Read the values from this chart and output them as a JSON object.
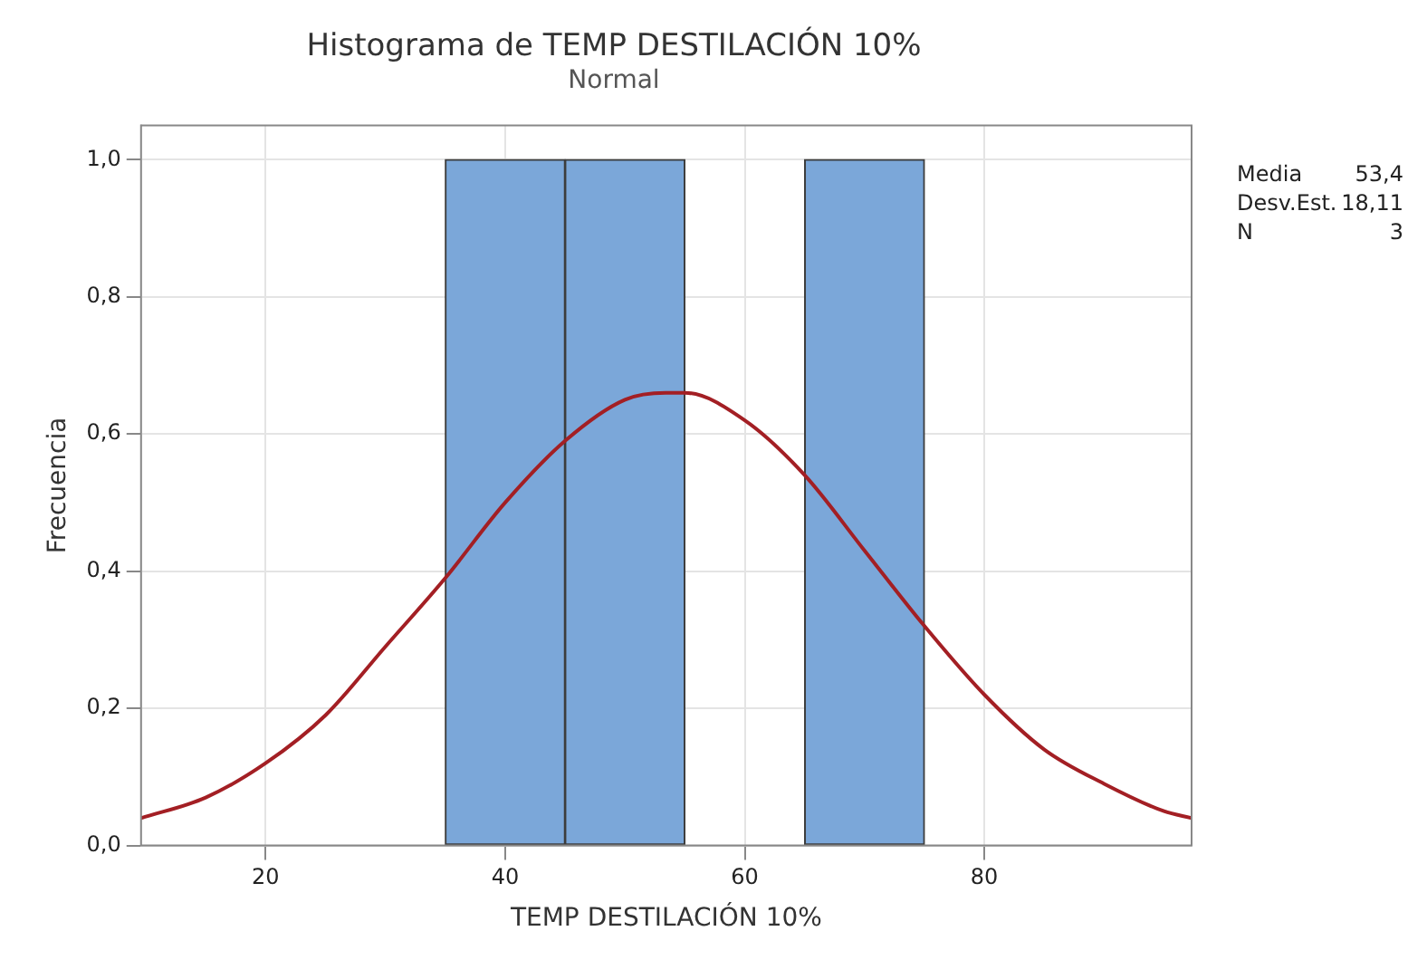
{
  "chart_data": {
    "type": "histogram",
    "title": "Histograma de TEMP DESTILACIÓN 10%",
    "subtitle": "Normal",
    "xlabel": "TEMP DESTILACIÓN 10%",
    "ylabel": "Frecuencia",
    "bins": [
      35,
      45,
      55,
      65,
      75
    ],
    "values": [
      1,
      1,
      0,
      1
    ],
    "color": "#7ba7d9",
    "series": [
      {
        "type": "line",
        "color": "#a31f24",
        "x": [
          9.6,
          15,
          20,
          25,
          30,
          35,
          40,
          45,
          50,
          53.4,
          55,
          60,
          65,
          70,
          75,
          80,
          85,
          90,
          95,
          97.3
        ],
        "values": [
          0.04,
          0.07,
          0.12,
          0.19,
          0.29,
          0.39,
          0.5,
          0.59,
          0.65,
          0.66,
          0.66,
          0.62,
          0.54,
          0.43,
          0.32,
          0.22,
          0.14,
          0.09,
          0.05,
          0.04
        ]
      }
    ],
    "xlim": [
      9.6,
      97.3
    ],
    "xticks": [
      20,
      40,
      60,
      80
    ],
    "ylim": [
      0,
      1.05
    ],
    "yticks": [
      {
        "value": 0,
        "label": "0,0"
      },
      {
        "value": 0.2,
        "label": "0,2"
      },
      {
        "value": 0.4,
        "label": "0,4"
      },
      {
        "value": 0.6,
        "label": "0,6"
      },
      {
        "value": 0.8,
        "label": "0,8"
      },
      {
        "value": 1,
        "label": "1,0"
      }
    ],
    "grid": true,
    "legend": false,
    "annotations": [
      [
        "Media",
        "53,4"
      ],
      [
        "Desv.Est.",
        "18,11"
      ],
      [
        "N",
        "3"
      ]
    ]
  }
}
